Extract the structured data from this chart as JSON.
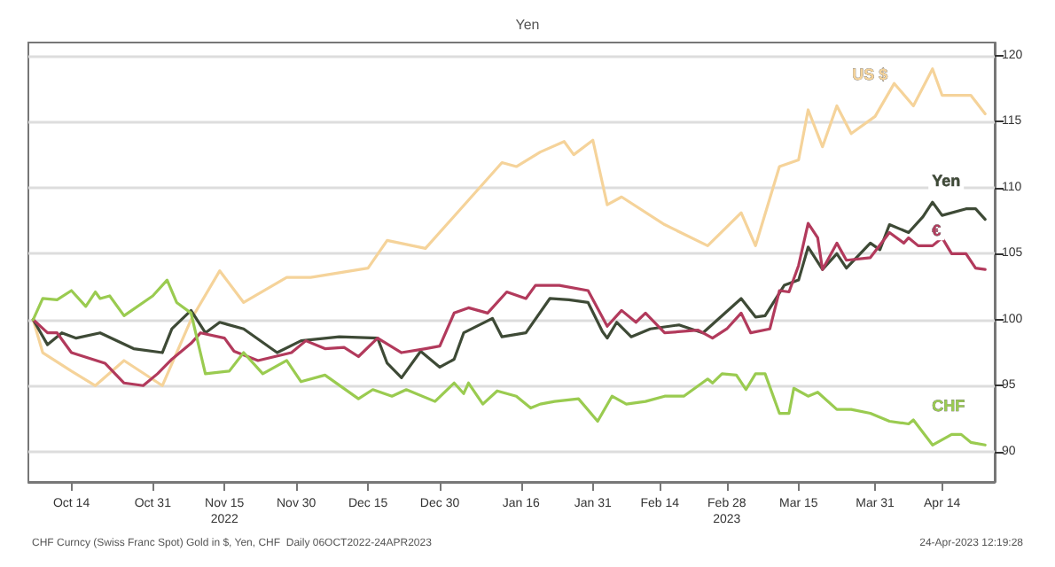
{
  "chart_data": {
    "type": "line",
    "annotations": [
      "Yen",
      "CHF Curncy (Swiss Franc Spot) Gold in $, Yen, CHF  Daily 06OCT2022-24APR2023",
      "24-Apr-2023 12:19:28"
    ],
    "series": [
      {
        "name": "US $",
        "color": "#f5d39a",
        "x": [
          "2022-10-06",
          "2022-10-08",
          "2022-10-14",
          "2022-10-19",
          "2022-10-25",
          "2022-11-02",
          "2022-11-08",
          "2022-11-14",
          "2022-11-19",
          "2022-11-28",
          "2022-12-03",
          "2022-12-15",
          "2022-12-19",
          "2022-12-27",
          "2023-01-12",
          "2023-01-15",
          "2023-01-20",
          "2023-01-25",
          "2023-01-27",
          "2023-01-31",
          "2023-02-03",
          "2023-02-06",
          "2023-02-15",
          "2023-02-24",
          "2023-03-03",
          "2023-03-06",
          "2023-03-11",
          "2023-03-15",
          "2023-03-17",
          "2023-03-20",
          "2023-03-23",
          "2023-03-26",
          "2023-03-31",
          "2023-04-04",
          "2023-04-08",
          "2023-04-12",
          "2023-04-14",
          "2023-04-20",
          "2023-04-23"
        ],
        "values": [
          100,
          97.5,
          96.1,
          95,
          96.9,
          95,
          100,
          103.7,
          101.3,
          103.2,
          103.2,
          103.9,
          106,
          105.4,
          111.9,
          111.6,
          112.7,
          113.5,
          112.5,
          113.6,
          108.7,
          109.3,
          107.2,
          105.6,
          108.1,
          105.6,
          111.6,
          112.1,
          115.9,
          113.1,
          116.2,
          114.1,
          115.4,
          117.9,
          116.2,
          119,
          117,
          117,
          115.6
        ]
      },
      {
        "name": "Yen",
        "color": "#3e4a36",
        "x": [
          "2022-10-06",
          "2022-10-09",
          "2022-10-12",
          "2022-10-15",
          "2022-10-20",
          "2022-10-27",
          "2022-11-02",
          "2022-11-04",
          "2022-11-08",
          "2022-11-11",
          "2022-11-14",
          "2022-11-19",
          "2022-11-26",
          "2022-12-01",
          "2022-12-09",
          "2022-12-17",
          "2022-12-19",
          "2022-12-22",
          "2022-12-26",
          "2022-12-30",
          "2023-01-02",
          "2023-01-04",
          "2023-01-10",
          "2023-01-12",
          "2023-01-17",
          "2023-01-22",
          "2023-01-26",
          "2023-01-30",
          "2023-02-02",
          "2023-02-03",
          "2023-02-05",
          "2023-02-08",
          "2023-02-12",
          "2023-02-18",
          "2023-02-23",
          "2023-03-03",
          "2023-03-06",
          "2023-03-08",
          "2023-03-12",
          "2023-03-15",
          "2023-03-17",
          "2023-03-20",
          "2023-03-23",
          "2023-03-25",
          "2023-03-30",
          "2023-04-01",
          "2023-04-03",
          "2023-04-07",
          "2023-04-10",
          "2023-04-12",
          "2023-04-14",
          "2023-04-19",
          "2023-04-21",
          "2023-04-23"
        ],
        "values": [
          100,
          98.1,
          99,
          98.6,
          99,
          97.8,
          97.5,
          99.3,
          100.7,
          99,
          99.8,
          99.3,
          97.5,
          98.4,
          98.7,
          98.6,
          96.7,
          95.6,
          97.6,
          96.4,
          97,
          99,
          100.1,
          98.7,
          99,
          101.6,
          101.5,
          101.3,
          99.1,
          98.6,
          99.8,
          98.7,
          99.3,
          99.6,
          99,
          101.6,
          100.2,
          100.3,
          102.6,
          103,
          105.5,
          103.8,
          105,
          103.9,
          105.8,
          105.3,
          107.2,
          106.6,
          107.8,
          108.9,
          107.9,
          108.4,
          108.4,
          107.6
        ]
      },
      {
        "name": "€",
        "color": "#b23a5c",
        "x": [
          "2022-10-06",
          "2022-10-09",
          "2022-10-11",
          "2022-10-14",
          "2022-10-21",
          "2022-10-25",
          "2022-10-29",
          "2022-11-01",
          "2022-11-04",
          "2022-11-08",
          "2022-11-10",
          "2022-11-15",
          "2022-11-17",
          "2022-11-22",
          "2022-11-29",
          "2022-12-02",
          "2022-12-06",
          "2022-12-10",
          "2022-12-13",
          "2022-12-17",
          "2022-12-22",
          "2022-12-27",
          "2022-12-30",
          "2023-01-02",
          "2023-01-05",
          "2023-01-09",
          "2023-01-13",
          "2023-01-17",
          "2023-01-19",
          "2023-01-24",
          "2023-01-30",
          "2023-02-03",
          "2023-02-06",
          "2023-02-09",
          "2023-02-11",
          "2023-02-15",
          "2023-02-22",
          "2023-02-25",
          "2023-02-28",
          "2023-03-03",
          "2023-03-05",
          "2023-03-09",
          "2023-03-11",
          "2023-03-13",
          "2023-03-15",
          "2023-03-17",
          "2023-03-19",
          "2023-03-20",
          "2023-03-23",
          "2023-03-25",
          "2023-03-30",
          "2023-04-03",
          "2023-04-06",
          "2023-04-07",
          "2023-04-09",
          "2023-04-12",
          "2023-04-14",
          "2023-04-16",
          "2023-04-19",
          "2023-04-21",
          "2023-04-23"
        ],
        "values": [
          100,
          99,
          99,
          97.5,
          96.7,
          95.2,
          95,
          95.9,
          97,
          98.2,
          99,
          98.6,
          97.6,
          96.9,
          97.5,
          98.4,
          97.8,
          97.9,
          97.2,
          98.6,
          97.5,
          97.8,
          98,
          100.5,
          100.9,
          100.5,
          102.1,
          101.6,
          102.6,
          102.6,
          102.2,
          99.5,
          100.7,
          99.8,
          100.5,
          99,
          99.2,
          98.6,
          99.3,
          100.5,
          99,
          99.3,
          102.2,
          102.1,
          104.1,
          107.3,
          106.2,
          103.8,
          105.8,
          104.5,
          104.7,
          106.6,
          105.8,
          106.2,
          105.6,
          105.6,
          106.2,
          105,
          105,
          103.9,
          103.8
        ]
      },
      {
        "name": "CHF",
        "color": "#9acb50",
        "x": [
          "2022-10-06",
          "2022-10-08",
          "2022-10-11",
          "2022-10-14",
          "2022-10-17",
          "2022-10-19",
          "2022-10-20",
          "2022-10-22",
          "2022-10-25",
          "2022-10-31",
          "2022-11-03",
          "2022-11-05",
          "2022-11-08",
          "2022-11-11",
          "2022-11-16",
          "2022-11-19",
          "2022-11-23",
          "2022-11-28",
          "2022-12-01",
          "2022-12-06",
          "2022-12-13",
          "2022-12-16",
          "2022-12-20",
          "2022-12-23",
          "2022-12-29",
          "2023-01-02",
          "2023-01-04",
          "2023-01-05",
          "2023-01-08",
          "2023-01-11",
          "2023-01-15",
          "2023-01-18",
          "2023-01-20",
          "2023-01-23",
          "2023-01-28",
          "2023-02-01",
          "2023-02-04",
          "2023-02-07",
          "2023-02-11",
          "2023-02-15",
          "2023-02-19",
          "2023-02-24",
          "2023-02-25",
          "2023-02-27",
          "2023-03-02",
          "2023-03-04",
          "2023-03-06",
          "2023-03-08",
          "2023-03-11",
          "2023-03-13",
          "2023-03-14",
          "2023-03-17",
          "2023-03-19",
          "2023-03-23",
          "2023-03-26",
          "2023-03-30",
          "2023-04-03",
          "2023-04-07",
          "2023-04-08",
          "2023-04-12",
          "2023-04-16",
          "2023-04-18",
          "2023-04-20",
          "2023-04-23"
        ],
        "values": [
          100,
          101.6,
          101.5,
          102.2,
          101,
          102.1,
          101.6,
          101.8,
          100.3,
          101.8,
          103,
          101.3,
          100.5,
          95.9,
          96.1,
          97.5,
          95.9,
          96.9,
          95.3,
          95.8,
          94,
          94.7,
          94.2,
          94.7,
          93.8,
          95.2,
          94.4,
          95.2,
          93.6,
          94.6,
          94.2,
          93.3,
          93.6,
          93.8,
          94,
          92.3,
          94.2,
          93.6,
          93.8,
          94.2,
          94.2,
          95.5,
          95.2,
          95.9,
          95.8,
          94.7,
          95.9,
          95.9,
          92.9,
          92.9,
          94.8,
          94.2,
          94.5,
          93.2,
          93.2,
          92.9,
          92.3,
          92.1,
          92.4,
          90.5,
          91.3,
          91.3,
          90.7,
          90.5
        ]
      }
    ],
    "xlim": [
      "2022-10-05",
      "2023-04-25"
    ],
    "xticks": [
      {
        "value": "2022-10-14",
        "label": "Oct 14"
      },
      {
        "value": "2022-10-31",
        "label": "Oct 31"
      },
      {
        "value": "2022-11-15",
        "label": "Nov 15\n2022"
      },
      {
        "value": "2022-11-30",
        "label": "Nov 30"
      },
      {
        "value": "2022-12-15",
        "label": "Dec 15"
      },
      {
        "value": "2022-12-30",
        "label": "Dec 30"
      },
      {
        "value": "2023-01-16",
        "label": "Jan 16"
      },
      {
        "value": "2023-01-31",
        "label": "Jan 31"
      },
      {
        "value": "2023-02-14",
        "label": "Feb 14"
      },
      {
        "value": "2023-02-28",
        "label": "Feb 28\n2023"
      },
      {
        "value": "2023-03-15",
        "label": "Mar 15"
      },
      {
        "value": "2023-03-31",
        "label": "Mar 31"
      },
      {
        "value": "2023-04-14",
        "label": "Apr 14"
      }
    ],
    "ylim": [
      87.7,
      121
    ],
    "yticks": [
      90,
      95,
      100,
      105,
      110,
      115,
      120
    ],
    "grid": "y",
    "legend": false,
    "marker": "none",
    "line_style": "solid"
  }
}
